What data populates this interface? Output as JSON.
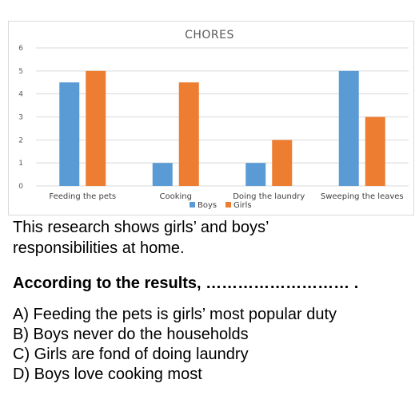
{
  "chart_data": {
    "type": "bar",
    "title": "CHORES",
    "categories": [
      "Feeding the pets",
      "Cooking",
      "Doing the laundry",
      "Sweeping the leaves"
    ],
    "series": [
      {
        "name": "Boys",
        "values": [
          4.5,
          1,
          1,
          5
        ],
        "color": "#5b9bd5"
      },
      {
        "name": "Girls",
        "values": [
          5,
          4.5,
          2,
          3
        ],
        "color": "#ed7d31"
      }
    ],
    "ylim": [
      0,
      6
    ],
    "yticks": [
      "0",
      "1",
      "2",
      "3",
      "4",
      "5",
      "6"
    ],
    "grid": true,
    "legend_position": "bottom"
  },
  "text": {
    "intro_line1": "This research shows girls’ and boys’",
    "intro_line2": "responsibilities at home.",
    "prompt": "According to the results, ……………………… .",
    "options": [
      "A) Feeding the pets is girls’ most popular duty",
      "B) Boys never do the households",
      "C) Girls are fond of doing laundry",
      "D) Boys love cooking most"
    ]
  }
}
